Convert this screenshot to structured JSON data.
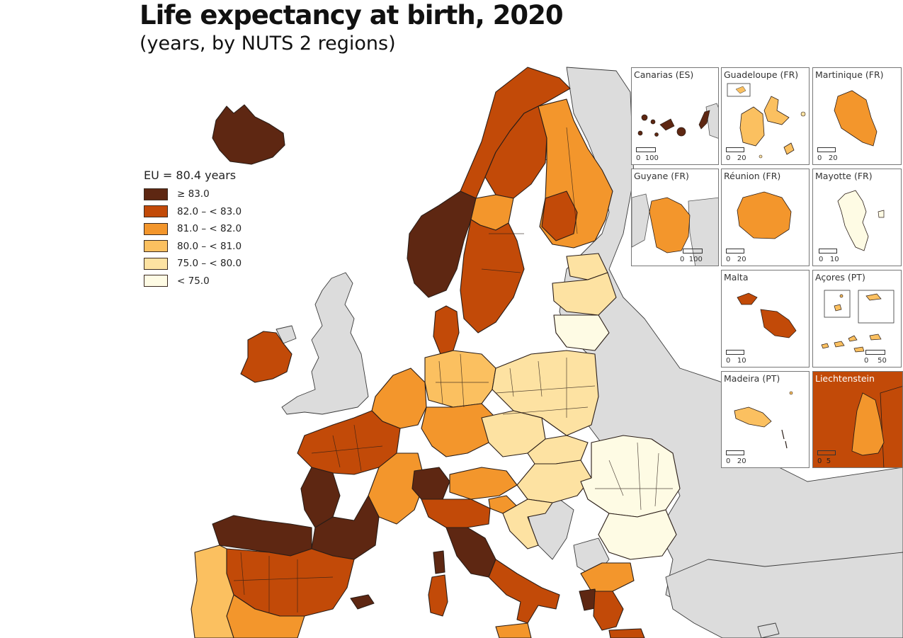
{
  "title": "Life expectancy at birth, 2020",
  "subtitle": "(years, by NUTS 2 regions)",
  "legend": {
    "title": "EU = 80.4 years",
    "classes": [
      {
        "label": "≥ 83.0",
        "color": "#5e2712"
      },
      {
        "label": "82.0 – < 83.0",
        "color": "#c24a08"
      },
      {
        "label": "81.0 – < 82.0",
        "color": "#f3962c"
      },
      {
        "label": "80.0 – < 81.0",
        "color": "#fbc060"
      },
      {
        "label": "75.0 – < 80.0",
        "color": "#fde2a2"
      },
      {
        "label": "< 75.0",
        "color": "#fefbe4"
      }
    ]
  },
  "colors": {
    "non_eu": "#dcdcdc",
    "sea": "#ffffff",
    "border": "#2a1d17"
  },
  "insets": [
    {
      "name": "Canarias (ES)",
      "scale": [
        "0",
        "100"
      ]
    },
    {
      "name": "Guadeloupe (FR)",
      "scale": [
        "0",
        "20"
      ]
    },
    {
      "name": "Martinique (FR)",
      "scale": [
        "0",
        "20"
      ]
    },
    {
      "name": "Guyane (FR)",
      "scale": [
        "0",
        "100"
      ]
    },
    {
      "name": "Réunion (FR)",
      "scale": [
        "0",
        "20"
      ]
    },
    {
      "name": "Mayotte (FR)",
      "scale": [
        "0",
        "10"
      ]
    },
    {
      "name": "Malta",
      "scale": [
        "0",
        "10"
      ]
    },
    {
      "name": "Açores (PT)",
      "scale": [
        "0",
        "50"
      ]
    },
    {
      "name": "Madeira (PT)",
      "scale": [
        "0",
        "20"
      ]
    },
    {
      "name": "Liechtenstein",
      "scale": [
        "0",
        "5"
      ]
    }
  ]
}
